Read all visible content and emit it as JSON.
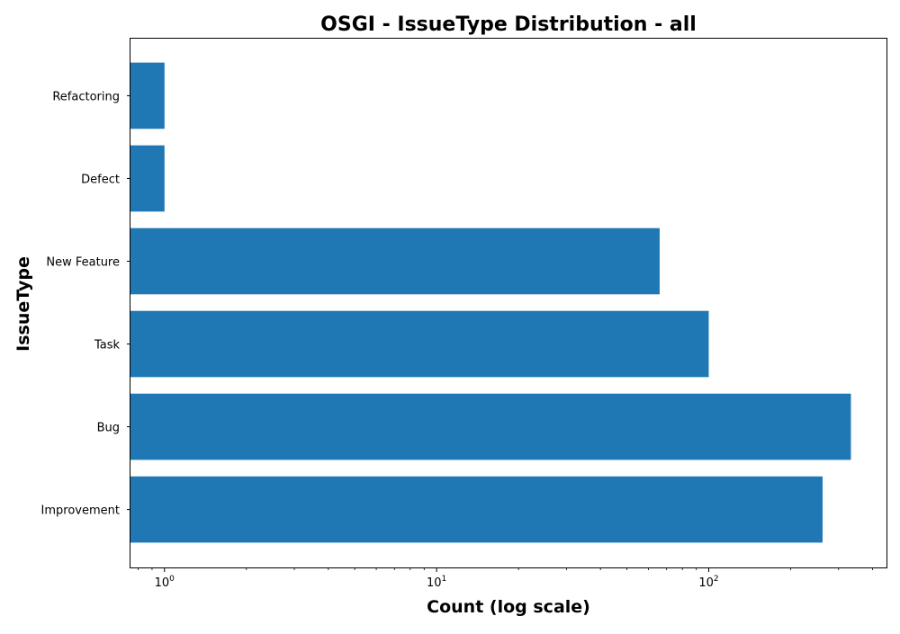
{
  "chart_data": {
    "type": "bar",
    "orientation": "horizontal",
    "title": "OSGI - IssueType Distribution - all",
    "xlabel": "Count (log scale)",
    "ylabel": "IssueType",
    "x_scale": "log",
    "xlim": [
      0.75,
      450
    ],
    "grid": false,
    "bar_color": "#1f77b4",
    "categories": [
      "Improvement",
      "Bug",
      "Task",
      "New Feature",
      "Defect",
      "Refactoring"
    ],
    "values": [
      262,
      333,
      100,
      66,
      1,
      1
    ],
    "x_ticks": [
      {
        "base": "10",
        "exp": "0",
        "value": 1
      },
      {
        "base": "10",
        "exp": "1",
        "value": 10
      },
      {
        "base": "10",
        "exp": "2",
        "value": 100
      }
    ]
  }
}
